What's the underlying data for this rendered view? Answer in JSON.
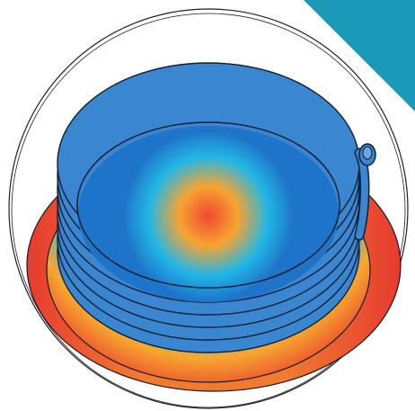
{
  "colors": {
    "background": "#ffffff",
    "corner_accent": "#1a9ab8",
    "coil_blue": "#3a86d0",
    "coil_outline": "#0d1f33",
    "heat_hot": "#e8453a",
    "heat_warm": "#f5a530",
    "heat_cool": "#19b4e0",
    "heat_cold": "#1565c0",
    "outline": "#222222"
  },
  "icons": {
    "corner": "triangle-corner-icon",
    "coil": "induction-coil-icon"
  },
  "coil": {
    "turns": 8
  }
}
